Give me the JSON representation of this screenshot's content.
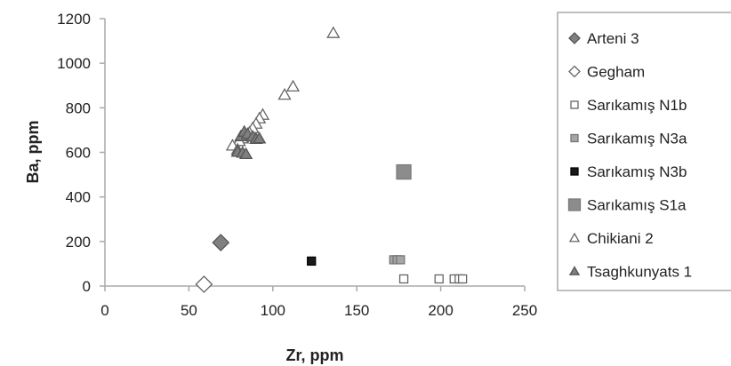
{
  "chart_data": {
    "type": "scatter",
    "xlabel": "Zr, ppm",
    "ylabel": "Ba, ppm",
    "xlim": [
      0,
      250
    ],
    "ylim": [
      0,
      1200
    ],
    "x_ticks": [
      "0",
      "50",
      "100",
      "150",
      "200",
      "250"
    ],
    "y_ticks": [
      "0",
      "200",
      "400",
      "600",
      "800",
      "1000",
      "1200"
    ],
    "grid": false,
    "legend_position": "right",
    "series": [
      {
        "name": "Arteni 3",
        "marker": "diamond",
        "fill": "#808080",
        "stroke": "#555555",
        "size": 9,
        "points": [
          [
            69,
            195
          ]
        ]
      },
      {
        "name": "Gegham",
        "marker": "diamond",
        "fill": "#ffffff",
        "stroke": "#666666",
        "size": 9,
        "points": [
          [
            59,
            8
          ]
        ]
      },
      {
        "name": "Sarıkamış N1b",
        "marker": "square",
        "fill": "#ffffff",
        "stroke": "#666666",
        "size": 4.5,
        "points": [
          [
            178,
            32
          ],
          [
            199,
            32
          ],
          [
            208,
            32
          ],
          [
            211,
            32
          ],
          [
            213,
            32
          ]
        ]
      },
      {
        "name": "Sarıkamış N3a",
        "marker": "square",
        "fill": "#a6a6a6",
        "stroke": "#777777",
        "size": 4.5,
        "points": [
          [
            172,
            118
          ],
          [
            174,
            118
          ],
          [
            176,
            118
          ]
        ]
      },
      {
        "name": "Sarıkamış N3b",
        "marker": "square",
        "fill": "#1a1a1a",
        "stroke": "#000000",
        "size": 4.5,
        "points": [
          [
            123,
            112
          ]
        ]
      },
      {
        "name": "Sarıkamış S1a",
        "marker": "square",
        "fill": "#8c8c8c",
        "stroke": "#7a7a7a",
        "size": 8,
        "points": [
          [
            178,
            512
          ]
        ]
      },
      {
        "name": "Chikiani 2",
        "marker": "triangle",
        "fill": "#ffffff",
        "stroke": "#666666",
        "size": 6.5,
        "points": [
          [
            136,
            1135
          ],
          [
            112,
            895
          ],
          [
            107,
            858
          ],
          [
            94,
            768
          ],
          [
            92,
            752
          ],
          [
            90,
            728
          ],
          [
            88,
            708
          ],
          [
            86,
            688
          ],
          [
            84,
            672
          ],
          [
            82,
            662
          ],
          [
            80,
            650
          ],
          [
            76,
            630
          ],
          [
            79,
            612
          ]
        ]
      },
      {
        "name": "Tsaghkunyats 1",
        "marker": "triangle",
        "fill": "#7f7f7f",
        "stroke": "#555555",
        "size": 6.5,
        "points": [
          [
            81,
            672
          ],
          [
            83,
            692
          ],
          [
            85,
            682
          ],
          [
            88,
            670
          ],
          [
            90,
            660
          ],
          [
            92,
            662
          ],
          [
            79,
            602
          ],
          [
            82,
            598
          ],
          [
            84,
            592
          ]
        ]
      }
    ]
  }
}
